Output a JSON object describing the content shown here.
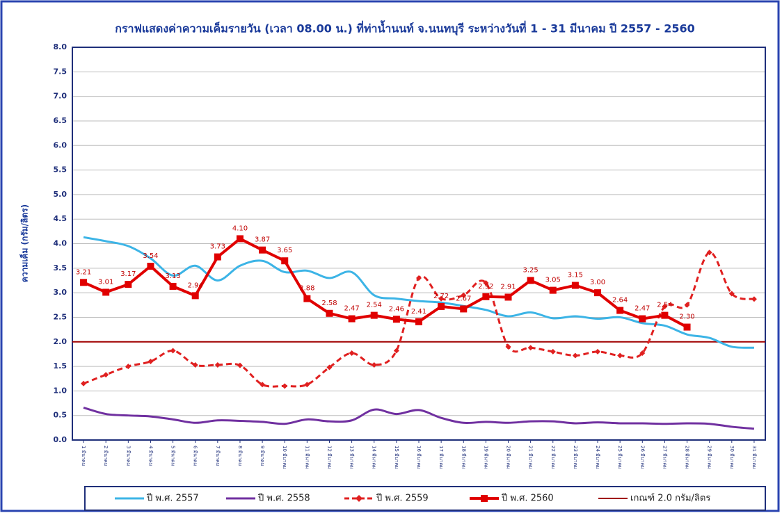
{
  "chart_data": {
    "type": "line",
    "title": "กราฟแสดงค่าความเค็มรายวัน  (เวลา 08.00 น.) ที่ท่าน้ำนนท์ จ.นนทบุรี ระหว่างวันที่  1 - 31 มีนาคม  ปี 2557 - 2560",
    "y_label": "ความเค็ม (กรัม/ลิตร)",
    "categories": [
      "1 มีนาคม",
      "2 มีนาคม",
      "3 มีนาคม",
      "4 มีนาคม",
      "5 มีนาคม",
      "6 มีนาคม",
      "7 มีนาคม",
      "8 มีนาคม",
      "9 มีนาคม",
      "10 มีนาคม",
      "11 มีนาคม",
      "12 มีนาคม",
      "13 มีนาคม",
      "14 มีนาคม",
      "15 มีนาคม",
      "16 มีนาคม",
      "17 มีนาคม",
      "18 มีนาคม",
      "19 มีนาคม",
      "20 มีนาคม",
      "21 มีนาคม",
      "22 มีนาคม",
      "23 มีนาคม",
      "24 มีนาคม",
      "25 มีนาคม",
      "26 มีนาคม",
      "27 มีนาคม",
      "28 มีนาคม",
      "29 มีนาคม",
      "30 มีนาคม",
      "31 มีนาคม"
    ],
    "ylim": [
      0,
      8
    ],
    "yticks": [
      {
        "value": 0,
        "label": "0.0"
      },
      0.5,
      {
        "value": 1,
        "label": "1.0"
      },
      1.5,
      {
        "value": 2,
        "label": "2.0"
      },
      2.5,
      {
        "value": 3,
        "label": "3.0"
      },
      3.5,
      {
        "value": 4,
        "label": "4.0"
      },
      4.5,
      {
        "value": 5,
        "label": "5.0"
      },
      5.5,
      {
        "value": 6,
        "label": "6.0"
      },
      6.5,
      {
        "value": 7,
        "label": "7.0"
      },
      7.5,
      {
        "value": 8,
        "label": "8.0"
      }
    ],
    "grid": true,
    "series": [
      {
        "name": "ปี พ.ศ. 2557",
        "color": "#3cb4e6",
        "smooth": true,
        "dashed": false,
        "marker": "none",
        "values": [
          4.13,
          4.05,
          3.95,
          3.7,
          3.35,
          3.55,
          3.25,
          3.55,
          3.65,
          3.42,
          3.45,
          3.3,
          3.42,
          2.95,
          2.88,
          2.83,
          2.8,
          2.73,
          2.65,
          2.52,
          2.6,
          2.48,
          2.52,
          2.47,
          2.5,
          2.38,
          2.33,
          2.15,
          2.08,
          1.9,
          1.88
        ]
      },
      {
        "name": "ปี พ.ศ. 2558",
        "color": "#7030a0",
        "smooth": true,
        "dashed": false,
        "marker": "none",
        "values": [
          0.66,
          0.53,
          0.5,
          0.48,
          0.42,
          0.35,
          0.4,
          0.39,
          0.37,
          0.33,
          0.42,
          0.38,
          0.4,
          0.62,
          0.53,
          0.61,
          0.45,
          0.35,
          0.37,
          0.35,
          0.38,
          0.38,
          0.34,
          0.36,
          0.34,
          0.34,
          0.33,
          0.34,
          0.33,
          0.27,
          0.23
        ]
      },
      {
        "name": "ปี พ.ศ. 2559",
        "color": "#e02020",
        "smooth": true,
        "dashed": true,
        "marker": "diamond",
        "values": [
          1.15,
          1.33,
          1.5,
          1.6,
          1.82,
          1.53,
          1.53,
          1.52,
          1.13,
          1.1,
          1.13,
          1.48,
          1.77,
          1.53,
          1.82,
          3.3,
          2.88,
          2.95,
          3.2,
          1.9,
          1.88,
          1.8,
          1.72,
          1.8,
          1.72,
          1.77,
          2.72,
          2.75,
          3.82,
          2.98,
          2.87
        ]
      },
      {
        "name": "ปี พ.ศ. 2560",
        "color": "#e00000",
        "smooth": false,
        "dashed": false,
        "marker": "square",
        "values": [
          3.21,
          3.01,
          3.17,
          3.54,
          3.13,
          2.94,
          3.73,
          4.1,
          3.87,
          3.65,
          2.88,
          2.58,
          2.47,
          2.54,
          2.46,
          2.41,
          2.72,
          2.67,
          2.92,
          2.91,
          3.25,
          3.05,
          3.15,
          3,
          2.64,
          2.47,
          2.54,
          2.3,
          null,
          null,
          null
        ],
        "value_labels": [
          "3.21",
          "3.01",
          "3.17",
          "3.54",
          "3.13",
          "2.94",
          "3.73",
          "4.10",
          "3.87",
          "3.65",
          "2.88",
          "2.58",
          "2.47",
          "2.54",
          "2.46",
          "2.41",
          "2.72",
          "2.67",
          "2.92",
          "2.91",
          "3.25",
          "3.05",
          "3.15",
          "3.00",
          "2.64",
          "2.47",
          "2.54",
          "2.30",
          null,
          null,
          null
        ]
      }
    ],
    "threshold": {
      "name": "เกณฑ์ 2.0 กรัม/ลิตร",
      "value": 2,
      "color": "#a00000"
    }
  }
}
